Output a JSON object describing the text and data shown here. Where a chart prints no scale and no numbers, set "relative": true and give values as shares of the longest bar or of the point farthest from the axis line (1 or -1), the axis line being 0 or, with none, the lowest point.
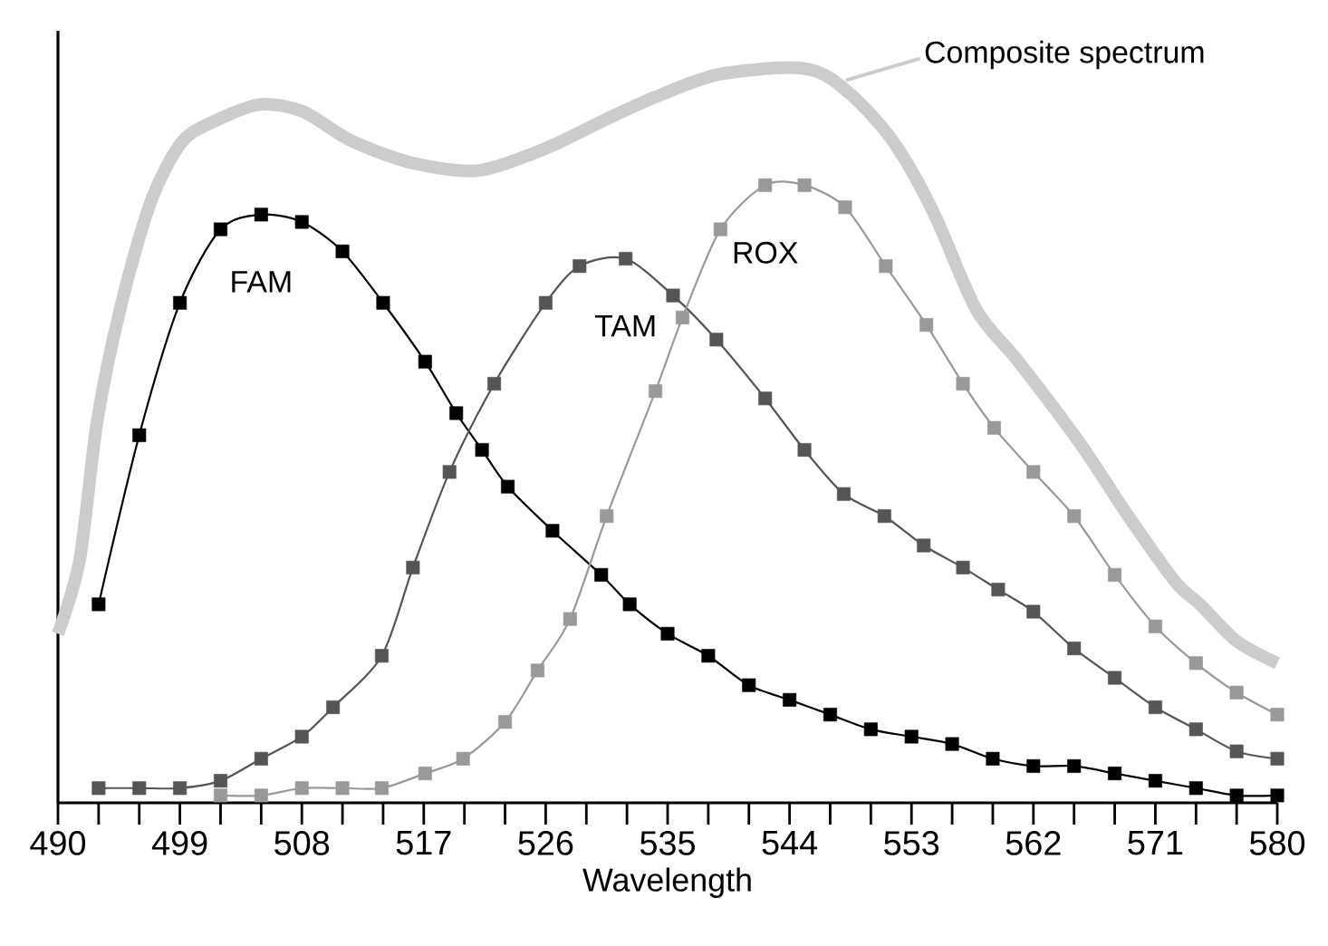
{
  "chart_data": {
    "type": "line",
    "relative": true,
    "xlabel": "Wavelength",
    "marker": "square",
    "xlim": [
      490,
      580
    ],
    "xticks": [
      490,
      {
        "value": 493,
        "label": null
      },
      {
        "value": 496,
        "label": null
      },
      499,
      {
        "value": 502,
        "label": null
      },
      {
        "value": 505,
        "label": null
      },
      508,
      {
        "value": 511,
        "label": null
      },
      {
        "value": 514,
        "label": null
      },
      517,
      {
        "value": 520,
        "label": null
      },
      {
        "value": 523,
        "label": null
      },
      526,
      {
        "value": 529,
        "label": null
      },
      {
        "value": 532,
        "label": null
      },
      535,
      {
        "value": 538,
        "label": null
      },
      {
        "value": 541,
        "label": null
      },
      544,
      {
        "value": 547,
        "label": null
      },
      {
        "value": 550,
        "label": null
      },
      553,
      {
        "value": 556,
        "label": null
      },
      {
        "value": 559,
        "label": null
      },
      562,
      {
        "value": 565,
        "label": null
      },
      {
        "value": 568,
        "label": null
      },
      571,
      {
        "value": 574,
        "label": null
      },
      {
        "value": 577,
        "label": null
      },
      580
    ],
    "series": [
      {
        "name": "Composite spectrum",
        "color": "#cccccc",
        "marker": "none",
        "x": [
          490,
          491.6,
          492.9,
          494.7,
          496.9,
          499.2,
          501.9,
          505,
          508.1,
          511.7,
          516.2,
          521.1,
          526,
          530.5,
          534.1,
          538.6,
          544,
          546.6,
          549.3,
          552,
          554.7,
          557.8,
          560.9,
          565.4,
          569,
          572.5,
          574.3,
          577,
          580
        ],
        "values": [
          0.23,
          0.33,
          0.52,
          0.68,
          0.82,
          0.9,
          0.93,
          0.95,
          0.94,
          0.9,
          0.87,
          0.86,
          0.89,
          0.93,
          0.96,
          0.99,
          1,
          0.99,
          0.95,
          0.89,
          0.8,
          0.67,
          0.6,
          0.49,
          0.39,
          0.3,
          0.27,
          0.22,
          0.19
        ]
      },
      {
        "name": "FAM",
        "color": "#000000",
        "x": [
          493,
          496,
          499,
          502,
          505,
          508,
          511,
          514,
          517.1,
          519.4,
          521.3,
          523.2,
          526.5,
          530.1,
          532.2,
          535,
          538,
          541,
          544,
          547,
          550,
          553,
          556,
          559,
          562,
          565,
          568,
          571,
          574,
          577,
          580
        ],
        "values": [
          0.27,
          0.5,
          0.68,
          0.78,
          0.8,
          0.79,
          0.75,
          0.68,
          0.6,
          0.53,
          0.48,
          0.43,
          0.37,
          0.31,
          0.27,
          0.23,
          0.2,
          0.16,
          0.14,
          0.12,
          0.1,
          0.09,
          0.08,
          0.06,
          0.05,
          0.05,
          0.04,
          0.03,
          0.02,
          0.01,
          0.01
        ]
      },
      {
        "name": "TAM",
        "color": "#555555",
        "x": [
          493,
          496,
          499,
          502,
          505,
          508,
          510.3,
          513.9,
          516.2,
          518.9,
          522.2,
          526,
          528.5,
          531.9,
          535.4,
          538.6,
          542.2,
          545.1,
          548,
          551,
          553.9,
          556.8,
          559.4,
          562,
          565,
          568,
          571,
          574,
          577,
          580
        ],
        "values": [
          0.02,
          0.02,
          0.02,
          0.03,
          0.06,
          0.09,
          0.13,
          0.2,
          0.32,
          0.45,
          0.57,
          0.68,
          0.73,
          0.74,
          0.69,
          0.63,
          0.55,
          0.48,
          0.42,
          0.39,
          0.35,
          0.32,
          0.29,
          0.26,
          0.21,
          0.17,
          0.13,
          0.1,
          0.07,
          0.06
        ]
      },
      {
        "name": "ROX",
        "color": "#999999",
        "x": [
          502,
          505,
          508,
          511,
          513.9,
          517.1,
          519.9,
          523,
          525.4,
          527.8,
          530.5,
          534.1,
          536.1,
          538.9,
          542.2,
          545.1,
          548.1,
          551.1,
          554.1,
          556.8,
          559.1,
          562,
          565,
          568,
          571,
          574,
          577,
          580
        ],
        "values": [
          0.01,
          0.01,
          0.02,
          0.02,
          0.02,
          0.04,
          0.06,
          0.11,
          0.18,
          0.25,
          0.39,
          0.56,
          0.66,
          0.78,
          0.84,
          0.84,
          0.81,
          0.73,
          0.65,
          0.57,
          0.51,
          0.45,
          0.39,
          0.31,
          0.24,
          0.19,
          0.15,
          0.12
        ]
      }
    ]
  }
}
